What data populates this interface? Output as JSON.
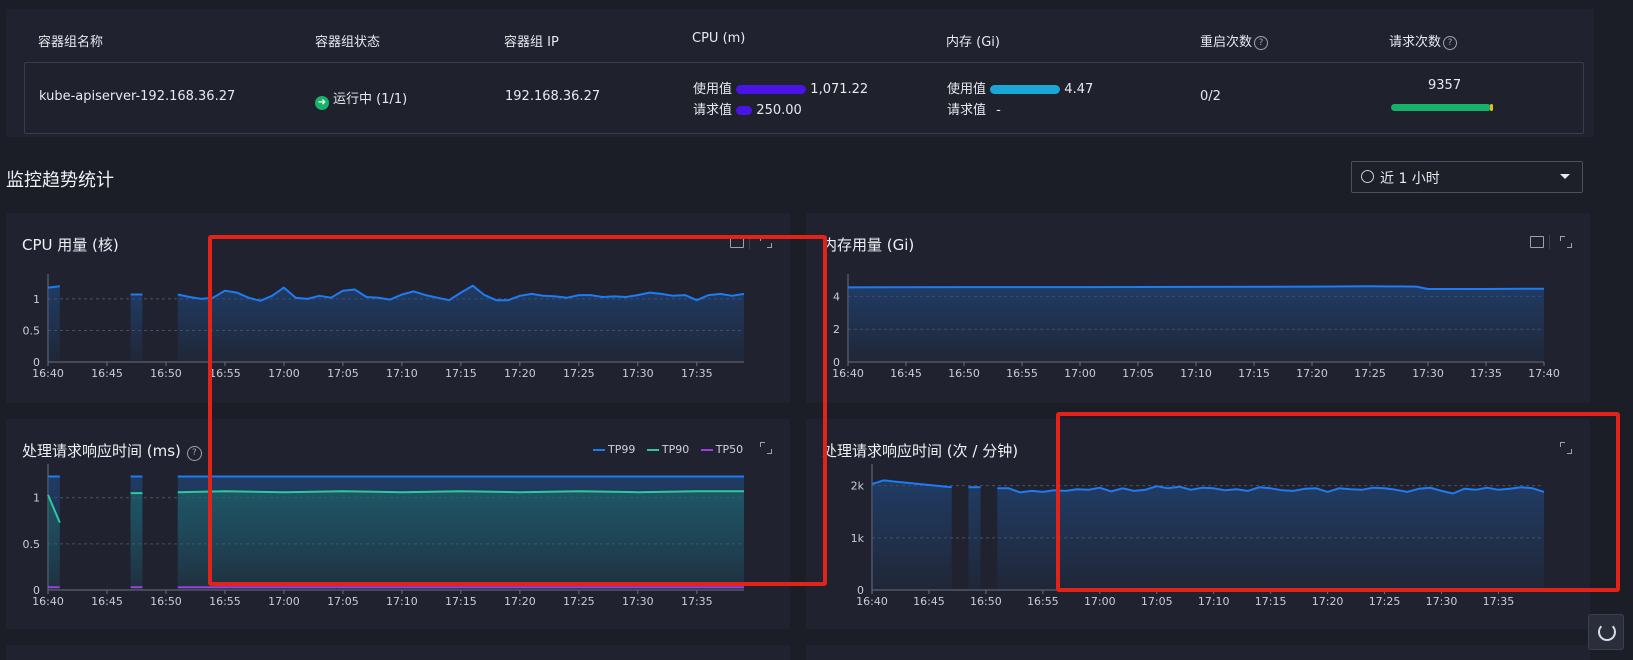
{
  "table": {
    "headers": {
      "name": "容器组名称",
      "status": "容器组状态",
      "ip": "容器组 IP",
      "cpu": "CPU (m)",
      "memory": "内存 (Gi)",
      "restarts": "重启次数",
      "requests": "请求次数"
    },
    "row": {
      "name": "kube-apiserver-192.168.36.27",
      "status": "运行中 (1/1)",
      "ip": "192.168.36.27",
      "cpu_used_label": "使用值",
      "cpu_used_value": "1,071.22",
      "cpu_req_label": "请求值",
      "cpu_req_value": "250.00",
      "mem_used_label": "使用值",
      "mem_used_value": "4.47",
      "mem_req_label": "请求值",
      "mem_req_value": "-",
      "restarts": "0/2",
      "requests": "9357"
    },
    "help_icon": "?"
  },
  "section_title": "监控趋势统计",
  "time_range": {
    "selected": "近 1 小时",
    "icon": "clock-icon"
  },
  "colors": {
    "cpu_used_bar": "#4a14e6",
    "cpu_req_bar": "#4a14e6",
    "mem_used_bar": "#1aa7d6",
    "request_bar": "#17b26a",
    "line_blue": "#1f7bf2",
    "line_green": "#2dc99a",
    "line_purple": "#9b3fe0",
    "highlight": "#e2231a"
  },
  "charts": {
    "cpu": {
      "title": "CPU 用量 (核)"
    },
    "memory": {
      "title": "内存用量 (Gi)"
    },
    "latency": {
      "title": "处理请求响应时间 (ms)"
    },
    "rate": {
      "title": "处理请求响应时间 (次 / 分钟)"
    }
  },
  "chart_data": [
    {
      "type": "area",
      "title": "CPU 用量 (核)",
      "x": [
        "16:40",
        "16:41",
        "16:47",
        "16:48",
        "16:51",
        "16:52",
        "16:53",
        "16:54",
        "16:55",
        "16:56",
        "16:57",
        "16:58",
        "16:59",
        "17:00",
        "17:01",
        "17:02",
        "17:03",
        "17:04",
        "17:05",
        "17:06",
        "17:07",
        "17:08",
        "17:09",
        "17:10",
        "17:11",
        "17:12",
        "17:13",
        "17:14",
        "17:15",
        "17:16",
        "17:17",
        "17:18",
        "17:19",
        "17:20",
        "17:21",
        "17:22",
        "17:23",
        "17:24",
        "17:25",
        "17:26",
        "17:27",
        "17:28",
        "17:29",
        "17:30",
        "17:31",
        "17:32",
        "17:33",
        "17:34",
        "17:35",
        "17:36",
        "17:37",
        "17:38",
        "17:39"
      ],
      "series": [
        {
          "values": [
            1.18,
            1.2,
            1.07,
            1.07,
            1.07,
            1.03,
            1.0,
            1.02,
            1.13,
            1.1,
            1.02,
            0.97,
            1.05,
            1.18,
            1.02,
            1.0,
            1.05,
            1.02,
            1.13,
            1.15,
            1.03,
            1.02,
            0.99,
            1.07,
            1.12,
            1.06,
            1.02,
            0.98,
            1.1,
            1.21,
            1.06,
            0.98,
            0.98,
            1.05,
            1.08,
            1.05,
            1.04,
            1.02,
            1.06,
            1.06,
            1.03,
            1.04,
            1.03,
            1.06,
            1.1,
            1.08,
            1.05,
            1.06,
            0.98,
            1.06,
            1.08,
            1.05,
            1.08
          ]
        }
      ],
      "gaps": [
        [
          "16:42",
          "16:46"
        ],
        [
          "16:49",
          "16:50"
        ]
      ],
      "xticks": [
        "16:40",
        "16:45",
        "16:50",
        "16:55",
        "17:00",
        "17:05",
        "17:10",
        "17:15",
        "17:20",
        "17:25",
        "17:30",
        "17:35"
      ],
      "yticks": [
        "0",
        "0.5",
        "1"
      ],
      "ylim": [
        0,
        1.3
      ]
    },
    {
      "type": "area",
      "title": "内存用量 (Gi)",
      "x": [
        "16:40",
        "16:50",
        "17:00",
        "17:10",
        "17:20",
        "17:25",
        "17:29",
        "17:30",
        "17:35",
        "17:40"
      ],
      "series": [
        {
          "values": [
            4.55,
            4.57,
            4.57,
            4.58,
            4.6,
            4.62,
            4.6,
            4.45,
            4.45,
            4.47
          ]
        }
      ],
      "xticks": [
        "16:40",
        "16:45",
        "16:50",
        "16:55",
        "17:00",
        "17:05",
        "17:10",
        "17:15",
        "17:20",
        "17:25",
        "17:30",
        "17:35",
        "17:40"
      ],
      "yticks": [
        "0",
        "2",
        "4"
      ],
      "ylim": [
        0,
        5
      ]
    },
    {
      "type": "area",
      "title": "处理请求响应时间 (ms)",
      "x": [
        "16:40",
        "16:41",
        "16:47",
        "16:48",
        "16:51",
        "16:55",
        "17:00",
        "17:05",
        "17:10",
        "17:15",
        "17:20",
        "17:25",
        "17:30",
        "17:35",
        "17:39"
      ],
      "series": [
        {
          "name": "TP99",
          "values": [
            1.23,
            1.23,
            1.23,
            1.23,
            1.23,
            1.23,
            1.23,
            1.23,
            1.23,
            1.23,
            1.23,
            1.23,
            1.23,
            1.23,
            1.23
          ]
        },
        {
          "name": "TP90",
          "values": [
            1.03,
            0.73,
            1.05,
            1.05,
            1.06,
            1.07,
            1.06,
            1.07,
            1.06,
            1.07,
            1.06,
            1.07,
            1.06,
            1.07,
            1.07
          ]
        },
        {
          "name": "TP50",
          "values": [
            0.03,
            0.03,
            0.03,
            0.03,
            0.03,
            0.03,
            0.03,
            0.03,
            0.03,
            0.03,
            0.03,
            0.03,
            0.03,
            0.03,
            0.03
          ]
        }
      ],
      "gaps": [
        [
          "16:42",
          "16:46"
        ],
        [
          "16:49",
          "16:50"
        ]
      ],
      "xticks": [
        "16:40",
        "16:45",
        "16:50",
        "16:55",
        "17:00",
        "17:05",
        "17:10",
        "17:15",
        "17:20",
        "17:25",
        "17:30",
        "17:35"
      ],
      "yticks": [
        "0",
        "0.5",
        "1"
      ],
      "ylim": [
        0,
        1.3
      ],
      "legend": "top-right"
    },
    {
      "type": "area",
      "title": "处理请求响应时间 (次 / 分钟)",
      "x": [
        "16:40",
        "16:41",
        "16:47",
        "16:49",
        "16:51",
        "16:52",
        "16:53",
        "16:54",
        "16:55",
        "16:56",
        "16:57",
        "16:58",
        "16:59",
        "17:00",
        "17:01",
        "17:02",
        "17:03",
        "17:04",
        "17:05",
        "17:06",
        "17:07",
        "17:08",
        "17:09",
        "17:10",
        "17:11",
        "17:12",
        "17:13",
        "17:14",
        "17:15",
        "17:16",
        "17:17",
        "17:18",
        "17:19",
        "17:20",
        "17:21",
        "17:22",
        "17:23",
        "17:24",
        "17:25",
        "17:26",
        "17:27",
        "17:28",
        "17:29",
        "17:30",
        "17:31",
        "17:32",
        "17:33",
        "17:34",
        "17:35",
        "17:36",
        "17:37",
        "17:38",
        "17:39"
      ],
      "series": [
        {
          "values": [
            2030,
            2100,
            1970,
            1970,
            1950,
            1950,
            1870,
            1900,
            1880,
            1910,
            1900,
            1930,
            1920,
            1960,
            1890,
            1950,
            1900,
            1920,
            1990,
            1950,
            1980,
            1920,
            1960,
            1950,
            1910,
            1930,
            1900,
            1970,
            1950,
            1910,
            1900,
            1940,
            1950,
            1880,
            1950,
            1930,
            1920,
            1960,
            1950,
            1920,
            1880,
            1940,
            1960,
            1900,
            1850,
            1940,
            1920,
            1960,
            1920,
            1940,
            1970,
            1950,
            1880
          ]
        }
      ],
      "gaps": [
        [
          "16:48",
          "16:49"
        ],
        [
          "16:50",
          "16:51"
        ]
      ],
      "xticks": [
        "16:40",
        "16:45",
        "16:50",
        "16:55",
        "17:00",
        "17:05",
        "17:10",
        "17:15",
        "17:20",
        "17:25",
        "17:30",
        "17:35"
      ],
      "yticks": [
        "0",
        "1k",
        "2k"
      ],
      "ylim": [
        0,
        2300
      ]
    }
  ]
}
